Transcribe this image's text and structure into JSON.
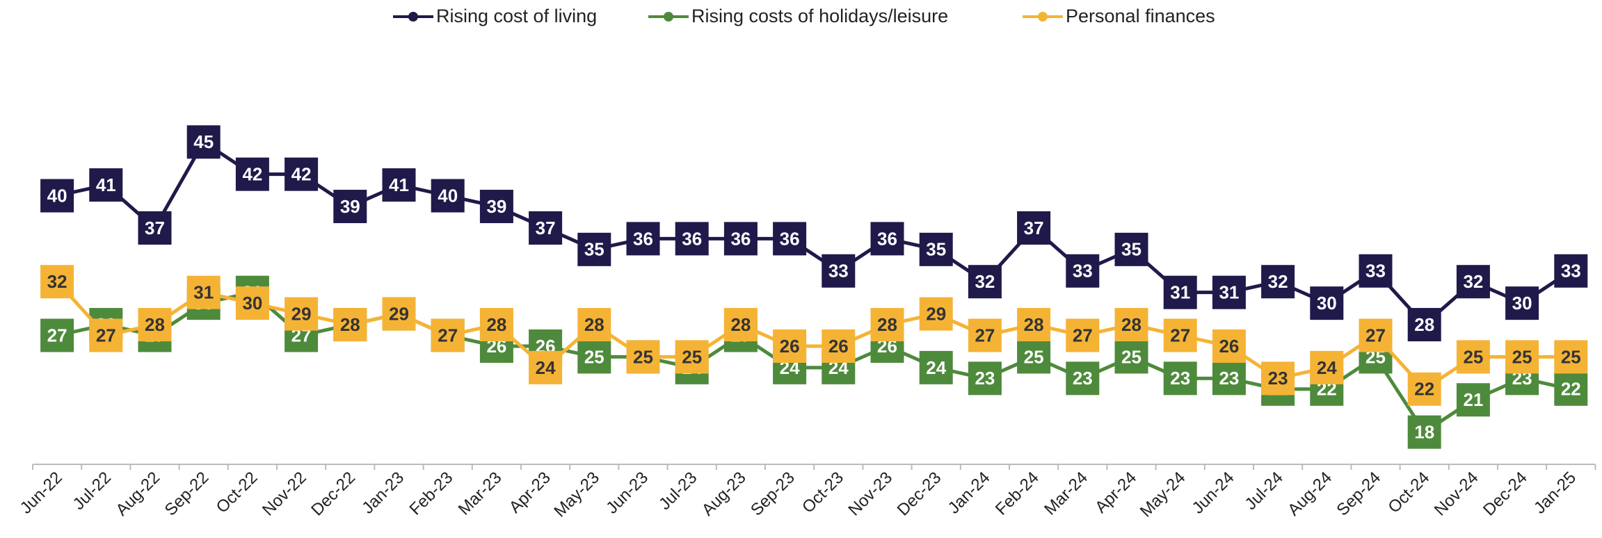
{
  "chart_data": {
    "type": "line",
    "categories": [
      "Jun-22",
      "Jul-22",
      "Aug-22",
      "Sep-22",
      "Oct-22",
      "Nov-22",
      "Dec-22",
      "Jan-23",
      "Feb-23",
      "Mar-23",
      "Apr-23",
      "May-23",
      "Jun-23",
      "Jul-23",
      "Aug-23",
      "Sep-23",
      "Oct-23",
      "Nov-23",
      "Dec-23",
      "Jan-24",
      "Feb-24",
      "Mar-24",
      "Apr-24",
      "May-24",
      "Jun-24",
      "Jul-24",
      "Aug-24",
      "Sep-24",
      "Oct-24",
      "Nov-24",
      "Dec-24",
      "Jan-25"
    ],
    "series": [
      {
        "name": "Rising cost of living",
        "color": "#1f1a4a",
        "values": [
          40,
          41,
          37,
          45,
          42,
          42,
          39,
          41,
          40,
          39,
          37,
          35,
          36,
          36,
          36,
          36,
          33,
          36,
          35,
          32,
          37,
          33,
          35,
          31,
          31,
          32,
          30,
          33,
          28,
          32,
          30,
          33
        ]
      },
      {
        "name": "Rising costs of holidays/leisure",
        "color": "#4e8a3c",
        "values": [
          27,
          28,
          27,
          30,
          31,
          27,
          28,
          29,
          27,
          26,
          26,
          25,
          25,
          24,
          27,
          24,
          24,
          26,
          24,
          23,
          25,
          23,
          25,
          23,
          23,
          22,
          22,
          25,
          18,
          21,
          23,
          22
        ]
      },
      {
        "name": "Personal finances",
        "color": "#f5b335",
        "values": [
          32,
          27,
          28,
          31,
          30,
          29,
          28,
          29,
          27,
          28,
          24,
          28,
          25,
          25,
          28,
          26,
          26,
          28,
          29,
          27,
          28,
          27,
          28,
          27,
          26,
          23,
          24,
          27,
          22,
          25,
          25,
          25
        ]
      }
    ],
    "ylim": [
      15,
      50
    ],
    "legend": "top"
  }
}
